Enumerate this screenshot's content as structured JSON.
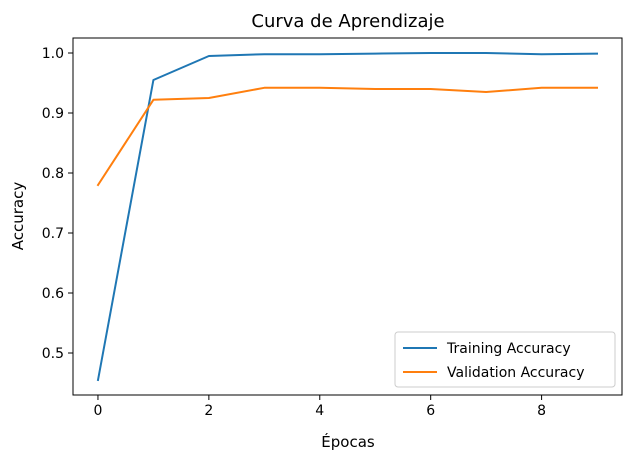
{
  "chart_data": {
    "type": "line",
    "title": "Curva de Aprendizaje",
    "xlabel": "Épocas",
    "ylabel": "Accuracy",
    "xlim": [
      -0.45,
      9.45
    ],
    "ylim": [
      0.43,
      1.025
    ],
    "x_ticks": [
      0,
      2,
      4,
      6,
      8
    ],
    "y_ticks": [
      0.5,
      0.6,
      0.7,
      0.8,
      0.9,
      1.0
    ],
    "y_tick_labels": [
      "0.5",
      "0.6",
      "0.7",
      "0.8",
      "0.9",
      "1.0"
    ],
    "grid": false,
    "legend_position": "lower-right",
    "x": [
      0,
      1,
      2,
      3,
      4,
      5,
      6,
      7,
      8,
      9
    ],
    "series": [
      {
        "name": "Training Accuracy",
        "color": "#1f77b4",
        "values": [
          0.455,
          0.955,
          0.995,
          0.998,
          0.998,
          0.999,
          1.0,
          1.0,
          0.998,
          0.999
        ]
      },
      {
        "name": "Validation Accuracy",
        "color": "#ff7f0e",
        "values": [
          0.78,
          0.922,
          0.925,
          0.942,
          0.942,
          0.94,
          0.94,
          0.935,
          0.942,
          0.942
        ]
      }
    ]
  }
}
